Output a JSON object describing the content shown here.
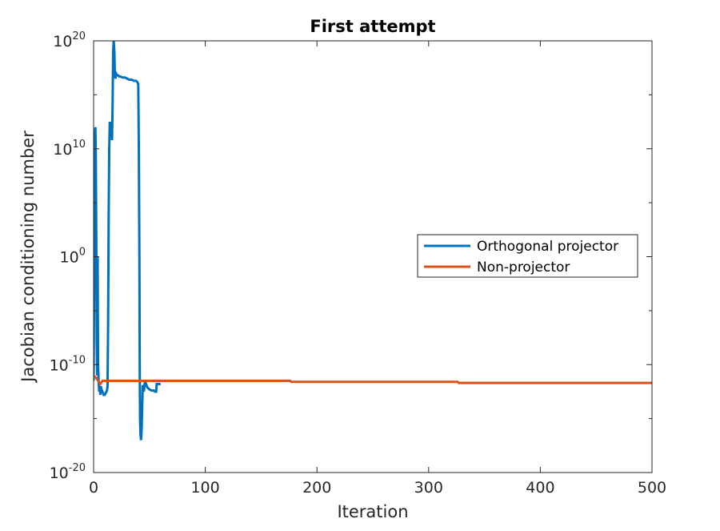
{
  "chart_data": {
    "type": "line",
    "title": "First attempt",
    "xlabel": "Iteration",
    "ylabel": "Jacobian conditioning number",
    "xlim": [
      0,
      500
    ],
    "ylim_log10": [
      -20,
      20
    ],
    "y_scale": "log",
    "grid": false,
    "legend_position": "center-right",
    "x_ticks": [
      0,
      100,
      200,
      300,
      400,
      500
    ],
    "y_ticks": [
      {
        "base": "10",
        "exp": "-20"
      },
      {
        "base": "10",
        "exp": "-10"
      },
      {
        "base": "10",
        "exp": "0"
      },
      {
        "base": "10",
        "exp": "10"
      },
      {
        "base": "10",
        "exp": "20"
      }
    ],
    "series": [
      {
        "name": "Orthogonal projector",
        "color": "#0072BD",
        "points_x_log10y": [
          [
            0,
            -11.5
          ],
          [
            0.8,
            3
          ],
          [
            1.2,
            11
          ],
          [
            1.6,
            12
          ],
          [
            2,
            9
          ],
          [
            2.4,
            2
          ],
          [
            2.8,
            -8
          ],
          [
            3.2,
            -11
          ],
          [
            3.6,
            0
          ],
          [
            4,
            -10
          ],
          [
            4.5,
            -11.5
          ],
          [
            5,
            -12.5
          ],
          [
            5.5,
            -12
          ],
          [
            6,
            -12.8
          ],
          [
            6.5,
            -12
          ],
          [
            7,
            -12.3
          ],
          [
            8,
            -12.5
          ],
          [
            9,
            -12.8
          ],
          [
            10,
            -12.8
          ],
          [
            11,
            -12.6
          ],
          [
            12,
            -12.4
          ],
          [
            12.5,
            -12
          ],
          [
            13,
            -6
          ],
          [
            13.5,
            4
          ],
          [
            14,
            10
          ],
          [
            14.5,
            12.5
          ],
          [
            15,
            12
          ],
          [
            15.5,
            12.5
          ],
          [
            16,
            12
          ],
          [
            16.5,
            10.8
          ],
          [
            17,
            14
          ],
          [
            17.5,
            19
          ],
          [
            18,
            20
          ],
          [
            18.6,
            19
          ],
          [
            19,
            17
          ],
          [
            19.6,
            16.5
          ],
          [
            20,
            17
          ],
          [
            21,
            16.8
          ],
          [
            22,
            16.8
          ],
          [
            23,
            16.7
          ],
          [
            24,
            16.7
          ],
          [
            26,
            16.6
          ],
          [
            28,
            16.6
          ],
          [
            30,
            16.5
          ],
          [
            32,
            16.4
          ],
          [
            34,
            16.4
          ],
          [
            36,
            16.3
          ],
          [
            38,
            16.3
          ],
          [
            39,
            16.2
          ],
          [
            40,
            16.0
          ],
          [
            40.5,
            10
          ],
          [
            41,
            0
          ],
          [
            41.3,
            -10
          ],
          [
            41.6,
            -15
          ],
          [
            42,
            -16.5
          ],
          [
            42.5,
            -17
          ],
          [
            43,
            -16
          ],
          [
            43.5,
            -14
          ],
          [
            44,
            -12
          ],
          [
            44.5,
            -12
          ],
          [
            45,
            -12.5
          ],
          [
            46,
            -11.5
          ],
          [
            47,
            -11.8
          ],
          [
            48,
            -12.1
          ],
          [
            50,
            -12.3
          ],
          [
            52,
            -12.4
          ],
          [
            54,
            -12.4
          ],
          [
            55,
            -12.5
          ],
          [
            56,
            -12.5
          ],
          [
            56.5,
            -11.8
          ],
          [
            58,
            -11.8
          ],
          [
            60,
            -11.8
          ]
        ]
      },
      {
        "name": "Non-projector",
        "color": "#D95319",
        "points_x_log10y": [
          [
            0,
            -11
          ],
          [
            2,
            -11.2
          ],
          [
            4,
            -11.5
          ],
          [
            6,
            -11.8
          ],
          [
            8,
            -11.5
          ],
          [
            10,
            -11.5
          ],
          [
            20,
            -11.5
          ],
          [
            50,
            -11.5
          ],
          [
            100,
            -11.5
          ],
          [
            176,
            -11.5
          ],
          [
            177,
            -11.6
          ],
          [
            250,
            -11.6
          ],
          [
            326,
            -11.6
          ],
          [
            327,
            -11.7
          ],
          [
            400,
            -11.7
          ],
          [
            500,
            -11.7
          ]
        ]
      }
    ]
  }
}
